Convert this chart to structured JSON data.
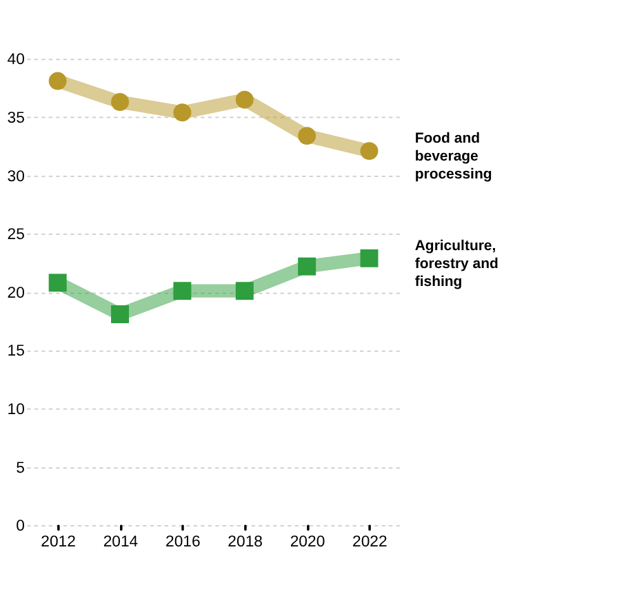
{
  "chart_data": {
    "type": "line",
    "x": [
      2012,
      2014,
      2016,
      2018,
      2020,
      2022
    ],
    "series": [
      {
        "name": "Food and beverage processing",
        "color": "#b8982a",
        "marker": "circle",
        "values": [
          38.1,
          36.3,
          35.4,
          36.5,
          33.4,
          32.1
        ]
      },
      {
        "name": "Agriculture, forestry and fishing",
        "color": "#2e9e3e",
        "marker": "square",
        "values": [
          20.8,
          18.1,
          20.1,
          20.1,
          22.2,
          22.9
        ]
      }
    ],
    "xlim": [
      2011,
      2023
    ],
    "xticks": [
      2012,
      2014,
      2016,
      2018,
      2020,
      2022
    ],
    "ylim": [
      0,
      40
    ],
    "yticks": [
      0,
      5,
      10,
      15,
      20,
      25,
      30,
      35,
      40
    ],
    "grid": "y",
    "legend": "right",
    "line_style": "solid"
  }
}
